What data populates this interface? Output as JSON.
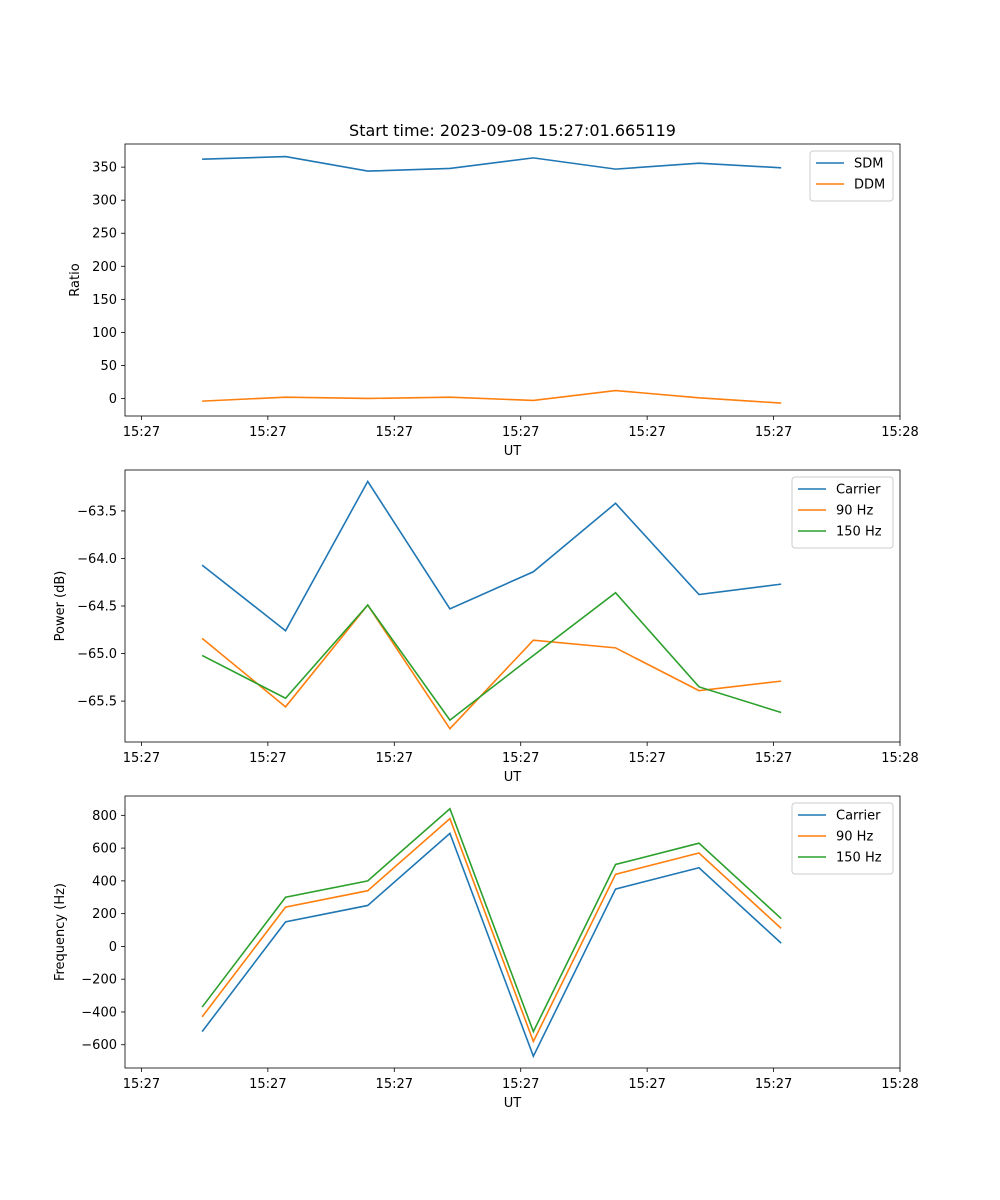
{
  "figure_title": "Start time: 2023-09-08 15:27:01.665119",
  "chart_data": [
    {
      "type": "line",
      "title": "Start time: 2023-09-08 15:27:01.665119",
      "xlabel": "UT",
      "ylabel": "Ratio",
      "x_ticks": [
        "15:27",
        "15:27",
        "15:27",
        "15:27",
        "15:27",
        "15:27",
        "15:28"
      ],
      "x_tick_positions": [
        0,
        1,
        2,
        3,
        4,
        5,
        6
      ],
      "xlim": [
        -0.13,
        6.0
      ],
      "x": [
        0.48,
        1.14,
        1.79,
        2.44,
        3.1,
        3.75,
        4.41,
        5.06
      ],
      "ylim": [
        -26.5,
        385.0
      ],
      "y_ticks": [
        0,
        50,
        100,
        150,
        200,
        250,
        300,
        350
      ],
      "y_tick_labels": [
        "0",
        "50",
        "100",
        "150",
        "200",
        "250",
        "300",
        "350"
      ],
      "legend_position": "upper right",
      "series": [
        {
          "name": "SDM",
          "color": "#1f77b4",
          "values": [
            362,
            366,
            344,
            348,
            364,
            347,
            356,
            349
          ]
        },
        {
          "name": "DDM",
          "color": "#ff7f0e",
          "values": [
            -4,
            2,
            0,
            2,
            -3,
            12,
            1,
            -7
          ]
        }
      ]
    },
    {
      "type": "line",
      "title": "",
      "xlabel": "UT",
      "ylabel": "Power (dB)",
      "x_ticks": [
        "15:27",
        "15:27",
        "15:27",
        "15:27",
        "15:27",
        "15:27",
        "15:28"
      ],
      "x_tick_positions": [
        0,
        1,
        2,
        3,
        4,
        5,
        6
      ],
      "xlim": [
        -0.13,
        6.0
      ],
      "x": [
        0.48,
        1.14,
        1.79,
        2.44,
        3.1,
        3.75,
        4.41,
        5.06
      ],
      "ylim": [
        -65.93,
        -63.07
      ],
      "y_ticks": [
        -65.5,
        -65.0,
        -64.5,
        -64.0,
        -63.5
      ],
      "y_tick_labels": [
        "−65.5",
        "−65.0",
        "−64.5",
        "−64.0",
        "−63.5"
      ],
      "legend_position": "upper right",
      "series": [
        {
          "name": "Carrier",
          "color": "#1f77b4",
          "values": [
            -64.07,
            -64.76,
            -63.19,
            -64.53,
            -64.14,
            -63.42,
            -64.38,
            -64.27
          ]
        },
        {
          "name": "90 Hz",
          "color": "#ff7f0e",
          "values": [
            -64.84,
            -65.56,
            -64.49,
            -65.79,
            -64.86,
            -64.94,
            -65.39,
            -65.29
          ]
        },
        {
          "name": "150 Hz",
          "color": "#2ca02c",
          "values": [
            -65.02,
            -65.47,
            -64.49,
            -65.7,
            -65.02,
            -64.36,
            -65.35,
            -65.62
          ]
        }
      ]
    },
    {
      "type": "line",
      "title": "",
      "xlabel": "UT",
      "ylabel": "Frequency (Hz)",
      "x_ticks": [
        "15:27",
        "15:27",
        "15:27",
        "15:27",
        "15:27",
        "15:27",
        "15:28"
      ],
      "x_tick_positions": [
        0,
        1,
        2,
        3,
        4,
        5,
        6
      ],
      "xlim": [
        -0.13,
        6.0
      ],
      "x": [
        0.48,
        1.14,
        1.79,
        2.44,
        3.1,
        3.75,
        4.41,
        5.06
      ],
      "ylim": [
        -742,
        918
      ],
      "y_ticks": [
        -600,
        -400,
        -200,
        0,
        200,
        400,
        600,
        800
      ],
      "y_tick_labels": [
        "−600",
        "−400",
        "−200",
        "0",
        "200",
        "400",
        "600",
        "800"
      ],
      "legend_position": "upper right",
      "series": [
        {
          "name": "Carrier",
          "color": "#1f77b4",
          "values": [
            -520,
            150,
            250,
            690,
            -670,
            350,
            480,
            20
          ]
        },
        {
          "name": "90 Hz",
          "color": "#ff7f0e",
          "values": [
            -430,
            240,
            340,
            780,
            -580,
            440,
            570,
            110
          ]
        },
        {
          "name": "150 Hz",
          "color": "#2ca02c",
          "values": [
            -370,
            300,
            400,
            840,
            -520,
            500,
            630,
            170
          ]
        }
      ]
    }
  ]
}
